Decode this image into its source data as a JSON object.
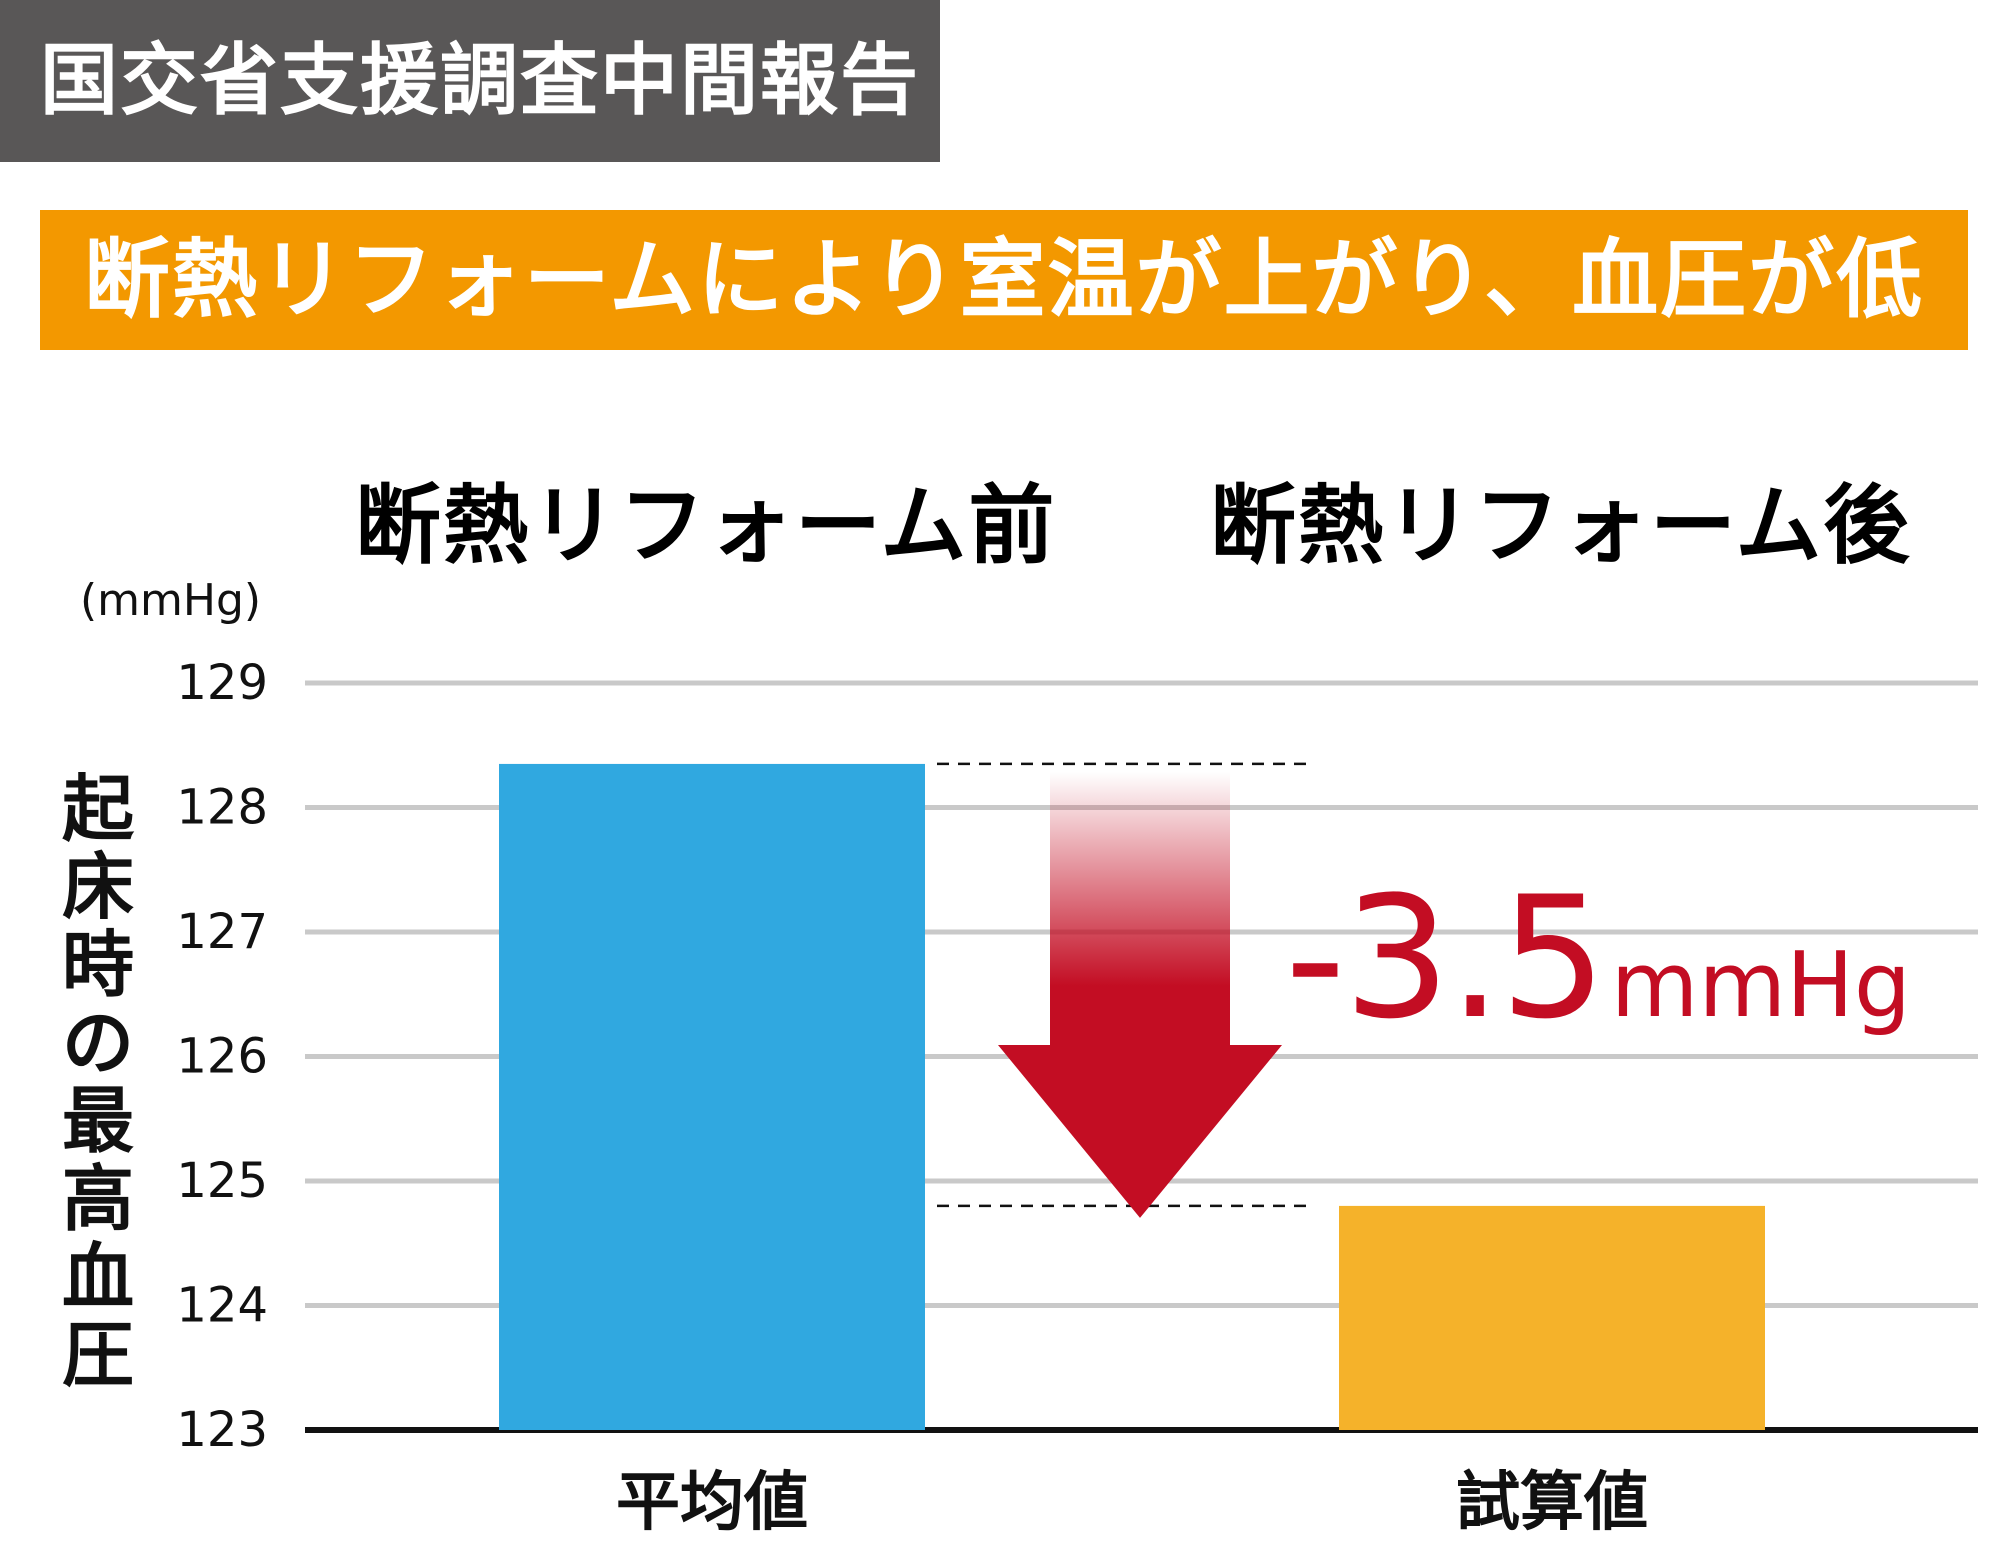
{
  "header": {
    "source_tag": "国交省支援調査中間報告",
    "headline": "断熱リフォームにより室温が上がり、血圧が低下"
  },
  "colors": {
    "before": "#30a8e0",
    "after": "#f5b22a",
    "accent": "#c30d23",
    "headline_bg": "#f39800",
    "tag_bg": "#595757",
    "grid": "#c9c9c9"
  },
  "chart_data": {
    "type": "bar",
    "unit": "(mmHg)",
    "ylabel": "起床時の最高血圧",
    "ylim": [
      123,
      129
    ],
    "yticks": [
      123,
      124,
      125,
      126,
      127,
      128,
      129
    ],
    "grid": true,
    "series": [
      {
        "name": "断熱リフォーム前",
        "category": "平均値",
        "value": 128.35
      },
      {
        "name": "断熱リフォーム後",
        "category": "試算値",
        "value": 124.8
      }
    ],
    "annotation": {
      "value": "-3.5",
      "unit": "mmHg",
      "direction": "down-arrow"
    }
  }
}
